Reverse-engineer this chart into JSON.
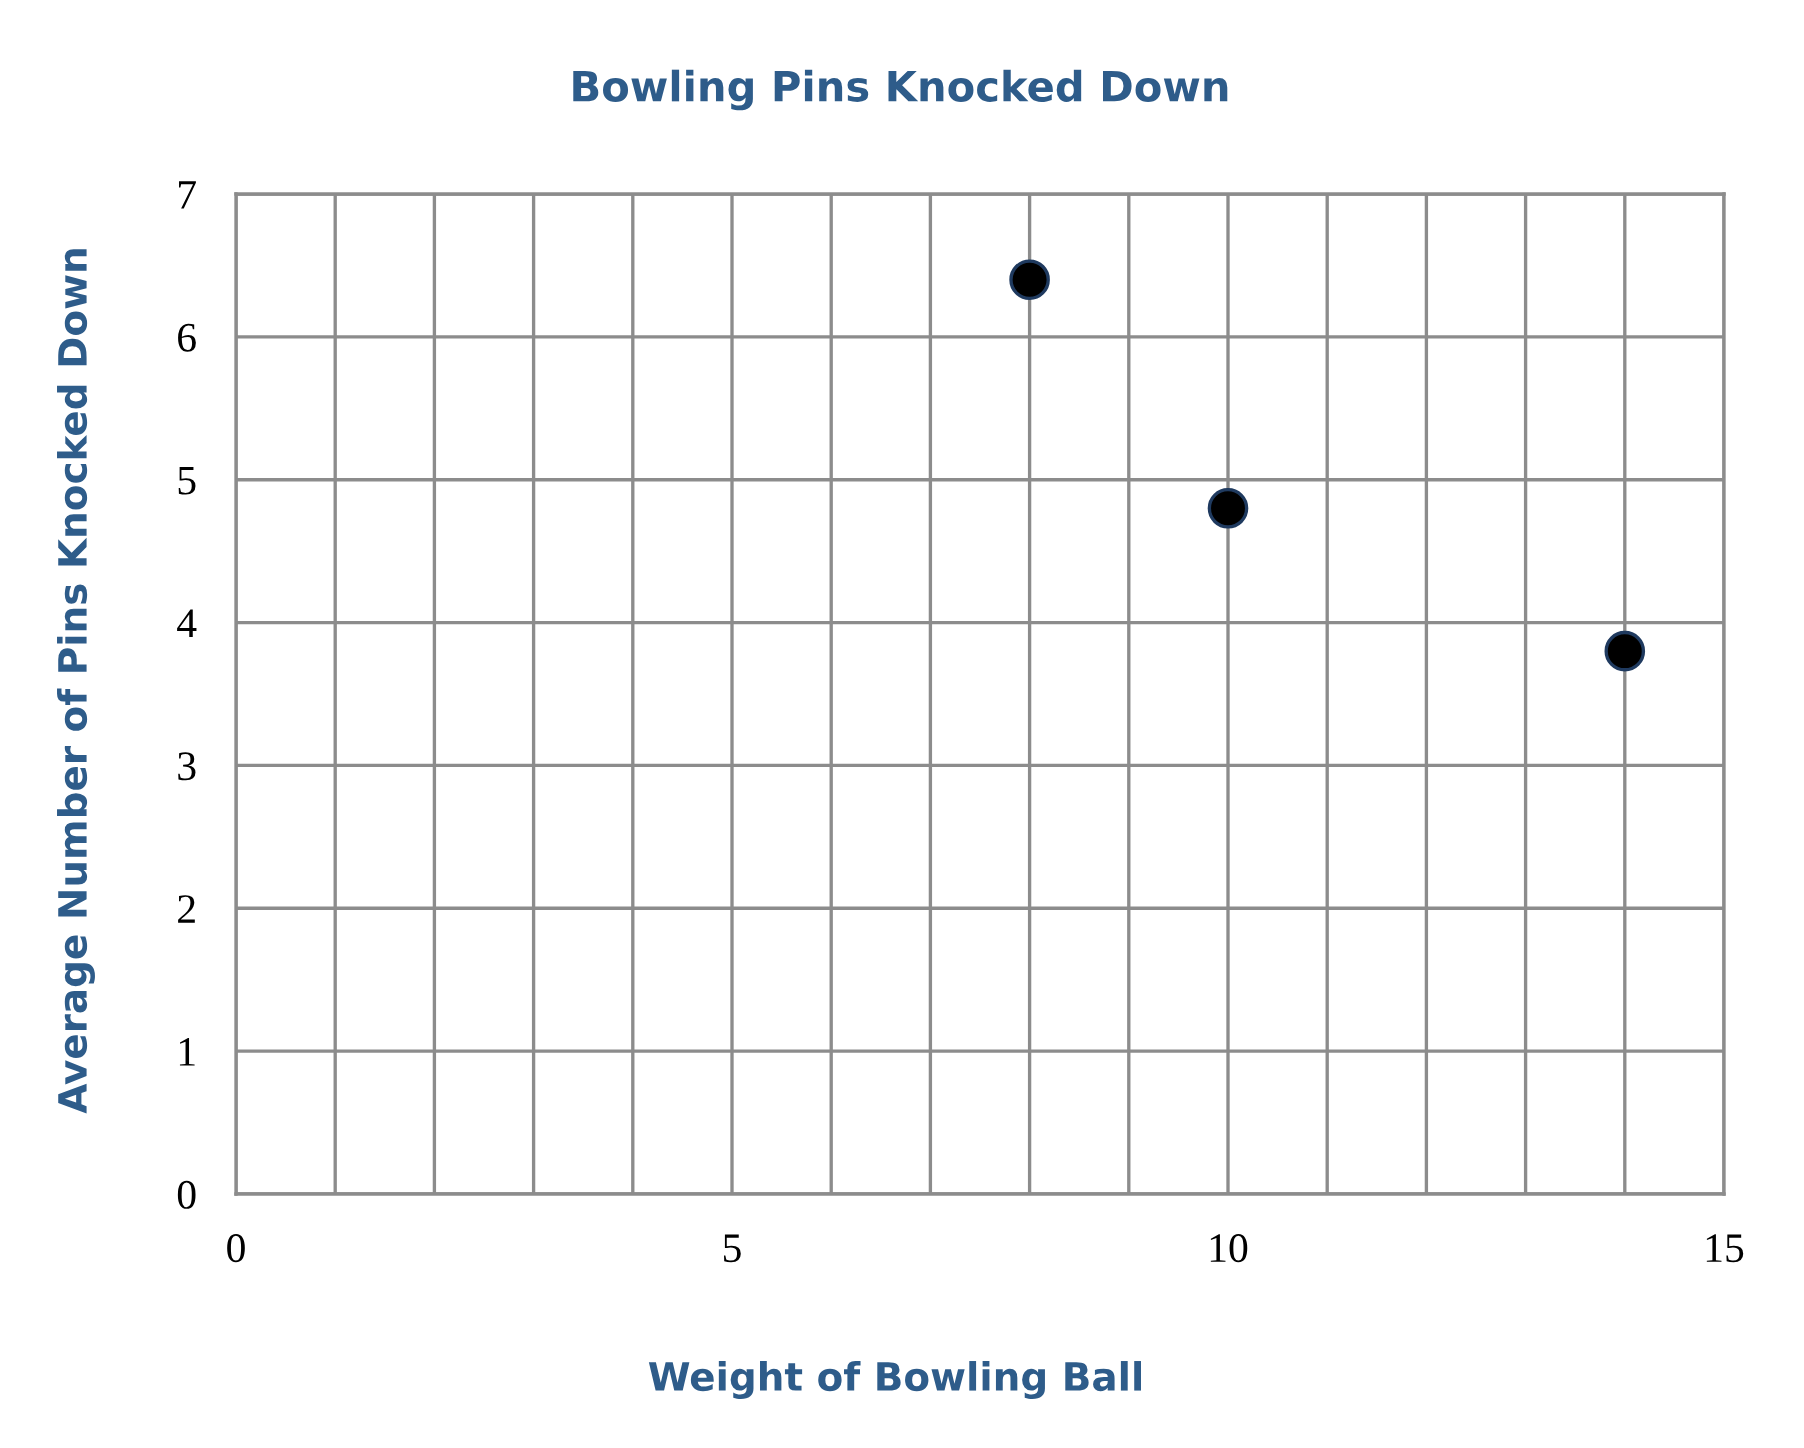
{
  "chart_data": {
    "type": "scatter",
    "title": "Bowling Pins Knocked Down",
    "xlabel": "Weight of Bowling Ball",
    "ylabel": "Average Number of Pins Knocked Down",
    "x": [
      8,
      10,
      14
    ],
    "series": [
      {
        "color": "#000000",
        "values": [
          6.4,
          4.8,
          3.8
        ]
      }
    ],
    "xlim": [
      0,
      15
    ],
    "ylim": [
      0,
      7
    ],
    "xticks": [
      0,
      {
        "value": 1,
        "label": null
      },
      {
        "value": 2,
        "label": null
      },
      {
        "value": 3,
        "label": null
      },
      {
        "value": 4,
        "label": null
      },
      5,
      {
        "value": 6,
        "label": null
      },
      {
        "value": 7,
        "label": null
      },
      {
        "value": 8,
        "label": null
      },
      {
        "value": 9,
        "label": null
      },
      10,
      {
        "value": 11,
        "label": null
      },
      {
        "value": 12,
        "label": null
      },
      {
        "value": 13,
        "label": null
      },
      {
        "value": 14,
        "label": null
      },
      15
    ],
    "yticks": [
      0,
      1,
      2,
      3,
      4,
      5,
      6,
      7
    ],
    "grid": true,
    "marker": "circle"
  }
}
